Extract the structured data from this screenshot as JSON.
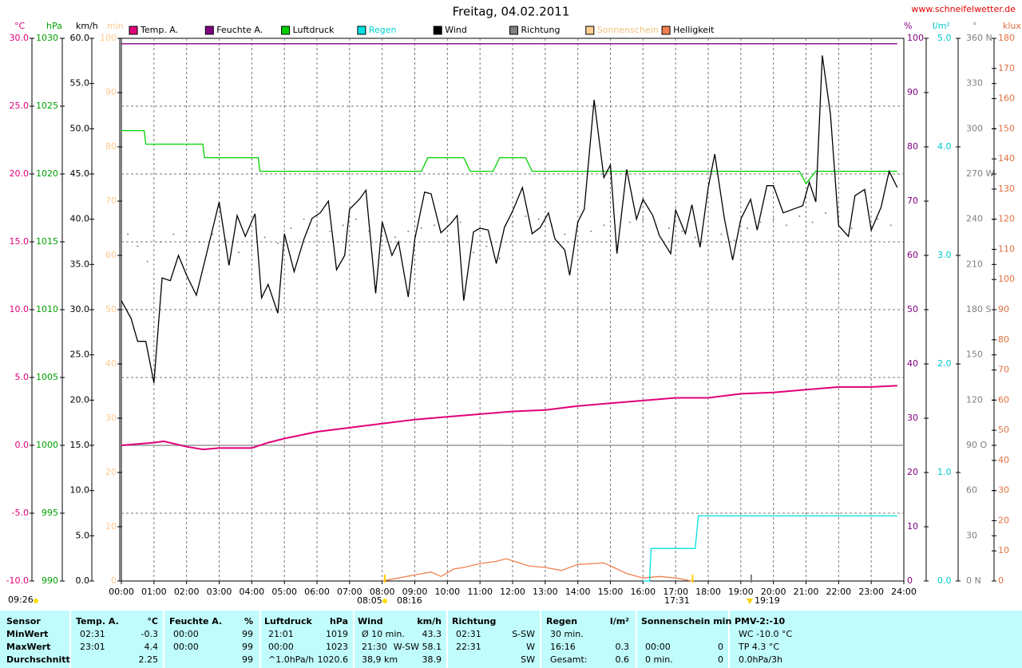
{
  "chart_data": {
    "type": "line",
    "title": "Freitag, 04.02.2011",
    "site": "www.schneifelwetter.de",
    "legend": [
      {
        "name": "Temp. A.",
        "color": "#e0007a"
      },
      {
        "name": "Feuchte A.",
        "color": "#800080"
      },
      {
        "name": "Luftdruck",
        "color": "#00d000"
      },
      {
        "name": "Regen",
        "color": "#00e0e0"
      },
      {
        "name": "Wind",
        "color": "#000000"
      },
      {
        "name": "Richtung",
        "color": "#808080"
      },
      {
        "name": "Sonnenschein",
        "color": "#ffd090"
      },
      {
        "name": "Helligkeit",
        "color": "#f08050"
      }
    ],
    "axes": {
      "temp": {
        "label": "°C",
        "color": "#e0007a",
        "lim": [
          -10,
          30
        ],
        "ticks": [
          {
            "value": -10,
            "label": "-10.0"
          },
          {
            "value": -5,
            "label": "-5.0"
          },
          {
            "value": 0,
            "label": "0.0"
          },
          {
            "value": 5,
            "label": "5.0"
          },
          {
            "value": 10,
            "label": "10.0"
          },
          {
            "value": 15,
            "label": "15.0"
          },
          {
            "value": 20,
            "label": "20.0"
          },
          {
            "value": 25,
            "label": "25.0"
          },
          {
            "value": 30,
            "label": "30.0"
          }
        ]
      },
      "press": {
        "label": "hPa",
        "color": "#00a000",
        "lim": [
          990,
          1030
        ],
        "ticks": [
          990,
          995,
          1000,
          1005,
          1010,
          1015,
          1020,
          1025,
          1030
        ]
      },
      "wind": {
        "label": "km/h",
        "color": "#000000",
        "lim": [
          0,
          60
        ],
        "ticks": [
          {
            "value": 0,
            "label": "0.0"
          },
          {
            "value": 5,
            "label": "5.0"
          },
          {
            "value": 10,
            "label": "10.0"
          },
          {
            "value": 15,
            "label": "15.0"
          },
          {
            "value": 20,
            "label": "20.0"
          },
          {
            "value": 25,
            "label": "25.0"
          },
          {
            "value": 30,
            "label": "30.0"
          },
          {
            "value": 35,
            "label": "35.0"
          },
          {
            "value": 40,
            "label": "40.0"
          },
          {
            "value": 45,
            "label": "45.0"
          },
          {
            "value": 50,
            "label": "50.0"
          },
          {
            "value": 55,
            "label": "55.0"
          },
          {
            "value": 60,
            "label": "60.0"
          }
        ]
      },
      "sun": {
        "label": "min",
        "color": "#ffc890",
        "lim": [
          0,
          100
        ],
        "ticks": [
          0,
          10,
          20,
          30,
          40,
          50,
          60,
          70,
          80,
          90,
          100
        ]
      },
      "hum": {
        "label": "%",
        "color": "#800080",
        "lim": [
          0,
          100
        ],
        "ticks": [
          0,
          10,
          20,
          30,
          40,
          50,
          60,
          70,
          80,
          90,
          100
        ]
      },
      "rain": {
        "label": "l/m²",
        "color": "#00c8c8",
        "lim": [
          0,
          5
        ],
        "ticks": [
          {
            "value": 0,
            "label": "0.0"
          },
          {
            "value": 1,
            "label": "1.0"
          },
          {
            "value": 2,
            "label": "2.0"
          },
          {
            "value": 3,
            "label": "3.0"
          },
          {
            "value": 4,
            "label": "4.0"
          },
          {
            "value": 5,
            "label": "5.0"
          }
        ]
      },
      "dir": {
        "label": "°",
        "color": "#808080",
        "lim": [
          0,
          360
        ],
        "ticks": [
          {
            "value": 0,
            "label": "0 N"
          },
          30,
          60,
          {
            "value": 90,
            "label": "90 O"
          },
          120,
          150,
          {
            "value": 180,
            "label": "180 S"
          },
          210,
          240,
          {
            "value": 270,
            "label": "270 W"
          },
          300,
          330,
          {
            "value": 360,
            "label": "360 N"
          }
        ]
      },
      "lux": {
        "label": "klux",
        "color": "#e07040",
        "lim": [
          0,
          180
        ],
        "ticks": [
          0,
          10,
          20,
          30,
          40,
          50,
          60,
          70,
          80,
          90,
          100,
          110,
          120,
          130,
          140,
          150,
          160,
          170,
          180
        ]
      }
    },
    "xlim": [
      0,
      24
    ],
    "xticks": [
      {
        "value": 0,
        "label": "00:00"
      },
      {
        "value": 1,
        "label": "01:00"
      },
      {
        "value": 2,
        "label": "02:00"
      },
      {
        "value": 3,
        "label": "03:00"
      },
      {
        "value": 4,
        "label": "04:00"
      },
      {
        "value": 5,
        "label": "05:00"
      },
      {
        "value": 6,
        "label": "06:00"
      },
      {
        "value": 7,
        "label": "07:00"
      },
      {
        "value": 8,
        "label": "08:00"
      },
      {
        "value": 9,
        "label": "09:00"
      },
      {
        "value": 10,
        "label": "10:00"
      },
      {
        "value": 11,
        "label": "11:00"
      },
      {
        "value": 12,
        "label": "12:00"
      },
      {
        "value": 13,
        "label": "13:00"
      },
      {
        "value": 14,
        "label": "14:00"
      },
      {
        "value": 15,
        "label": "15:00"
      },
      {
        "value": 16,
        "label": "16:00"
      },
      {
        "value": 17,
        "label": "17:00"
      },
      {
        "value": 18,
        "label": "18:00"
      },
      {
        "value": 19,
        "label": "19:00"
      },
      {
        "value": 20,
        "label": "20:00"
      },
      {
        "value": 21,
        "label": "21:00"
      },
      {
        "value": 22,
        "label": "22:00"
      },
      {
        "value": 23,
        "label": "23:00"
      },
      {
        "value": 24,
        "label": "24:00"
      }
    ],
    "grid": true,
    "series": [
      {
        "name": "Feuchte A.",
        "color": "#800080",
        "axis": "hum",
        "x": [
          0,
          23.8
        ],
        "values": [
          99,
          99
        ]
      },
      {
        "name": "Luftdruck",
        "color": "#00d000",
        "axis": "press",
        "x": [
          0,
          0.7,
          0.75,
          2.5,
          2.55,
          4.2,
          4.25,
          9.2,
          9.4,
          10.5,
          10.7,
          11.4,
          11.6,
          12.4,
          12.6,
          20.8,
          21,
          21.3,
          23.8
        ],
        "values": [
          1023.2,
          1023.2,
          1022.2,
          1022.2,
          1021.2,
          1021.2,
          1020.2,
          1020.2,
          1021.2,
          1021.2,
          1020.2,
          1020.2,
          1021.2,
          1021.2,
          1020.2,
          1020.2,
          1019.3,
          1020.2,
          1020.2
        ]
      },
      {
        "name": "Temp. A.",
        "color": "#e0007a",
        "axis": "temp",
        "x": [
          0,
          1,
          1.3,
          2,
          2.5,
          3,
          4,
          4.5,
          5,
          6,
          7,
          8,
          9,
          10,
          11,
          12,
          13,
          14,
          15,
          16,
          17,
          18,
          19,
          20,
          21,
          22,
          23,
          23.8
        ],
        "values": [
          0,
          0.2,
          0.3,
          -0.1,
          -0.3,
          -0.2,
          -0.2,
          0.2,
          0.5,
          1,
          1.3,
          1.6,
          1.9,
          2.1,
          2.3,
          2.5,
          2.6,
          2.9,
          3.1,
          3.3,
          3.5,
          3.5,
          3.8,
          3.9,
          4.1,
          4.3,
          4.3,
          4.4
        ]
      },
      {
        "name": "Helligkeit",
        "color": "#f08050",
        "axis": "lux",
        "x": [
          8,
          8.5,
          9,
          9.5,
          9.8,
          10.2,
          10.5,
          11,
          11.5,
          11.8,
          12.2,
          12.5,
          13,
          13.5,
          14,
          14.5,
          14.8,
          15.2,
          15.5,
          16,
          16.5,
          17,
          17.5
        ],
        "values": [
          0,
          1,
          2,
          3,
          1.5,
          4,
          4.5,
          5.8,
          6.5,
          7.4,
          6,
          5,
          4.5,
          3.5,
          5.5,
          5.8,
          6,
          4,
          2.5,
          1,
          1.5,
          1,
          0
        ]
      },
      {
        "name": "Regen",
        "color": "#00e0e0",
        "axis": "rain",
        "x": [
          16,
          16.2,
          16.25,
          17.6,
          17.7,
          23.8
        ],
        "values": [
          0,
          0,
          0.3,
          0.3,
          0.6,
          0.6
        ]
      },
      {
        "name": "Richtung",
        "color": "#808080",
        "axis": "dir",
        "style": "dots",
        "x": [
          0.2,
          0.5,
          0.8,
          1.2,
          1.6,
          2,
          2.4,
          2.8,
          3.2,
          3.6,
          4,
          4.4,
          4.8,
          5.2,
          5.6,
          6,
          6.4,
          6.8,
          7.2,
          7.6,
          8,
          8.4,
          8.8,
          9.2,
          9.6,
          10,
          10.4,
          10.8,
          11.2,
          11.6,
          12,
          12.4,
          12.8,
          13.2,
          13.6,
          14,
          14.4,
          14.8,
          15.2,
          15.6,
          16,
          16.4,
          16.8,
          17.2,
          17.6,
          18,
          18.4,
          18.8,
          19.2,
          19.6,
          20,
          20.4,
          20.8,
          21.2,
          21.6,
          22,
          22.4,
          22.8,
          23.2,
          23.6
        ],
        "values": [
          230,
          222,
          212,
          225,
          230,
          232,
          225,
          230,
          226,
          218,
          222,
          228,
          224,
          234,
          240,
          236,
          232,
          236,
          240,
          232,
          234,
          228,
          232,
          234,
          236,
          240,
          238,
          218,
          222,
          214,
          238,
          242,
          240,
          236,
          230,
          238,
          232,
          236,
          222,
          238,
          240,
          236,
          234,
          232,
          228,
          232,
          230,
          226,
          234,
          238,
          240,
          236,
          242,
          238,
          244,
          242,
          234,
          258,
          240,
          236
        ]
      },
      {
        "name": "Wind",
        "color": "#000000",
        "axis": "wind",
        "x": [
          0,
          0.3,
          0.5,
          0.75,
          1,
          1.25,
          1.5,
          1.75,
          2,
          2.3,
          2.6,
          3,
          3.3,
          3.55,
          3.8,
          4.1,
          4.3,
          4.5,
          4.8,
          5,
          5.3,
          5.6,
          5.85,
          6.1,
          6.35,
          6.6,
          6.85,
          7,
          7.3,
          7.5,
          7.8,
          8,
          8.3,
          8.5,
          8.8,
          9,
          9.3,
          9.5,
          9.8,
          10.1,
          10.3,
          10.5,
          10.8,
          11,
          11.25,
          11.5,
          11.75,
          12,
          12.3,
          12.6,
          12.85,
          13.1,
          13.3,
          13.6,
          13.75,
          14,
          14.2,
          14.5,
          14.8,
          15,
          15.2,
          15.5,
          15.8,
          16,
          16.3,
          16.5,
          16.85,
          17,
          17.3,
          17.5,
          17.75,
          18,
          18.2,
          18.5,
          18.75,
          19,
          19.3,
          19.5,
          19.8,
          20,
          20.3,
          20.6,
          20.9,
          21.1,
          21.3,
          21.5,
          21.75,
          22,
          22.3,
          22.5,
          22.8,
          23,
          23.3,
          23.55,
          23.8
        ],
        "values": [
          31,
          29,
          26.5,
          26.5,
          21.9,
          33.5,
          33.2,
          36,
          33.8,
          31.6,
          36,
          41.9,
          34.9,
          40.4,
          38.1,
          40.6,
          31.3,
          32.8,
          29.6,
          38.4,
          34.2,
          37.8,
          40.1,
          40.7,
          42,
          34.4,
          36,
          41.1,
          42.2,
          43.2,
          31.8,
          39.7,
          36,
          37.5,
          31.4,
          37.8,
          43,
          42.8,
          38.5,
          39.5,
          40.4,
          31,
          38.6,
          39,
          38.8,
          35.1,
          39.1,
          40.9,
          43.5,
          38.4,
          39.1,
          40.7,
          37.8,
          36.6,
          33.8,
          39.7,
          41.1,
          53.2,
          44.6,
          46,
          36.2,
          45.5,
          40,
          42.2,
          40.4,
          38.2,
          36.2,
          41,
          38.4,
          41.6,
          36.9,
          43.5,
          47.2,
          40,
          35.5,
          40,
          42.2,
          38.8,
          43.7,
          43.7,
          40.7,
          41.1,
          41.5,
          44.1,
          41.9,
          58.1,
          51.6,
          39.3,
          38.1,
          42.6,
          43.3,
          38.8,
          41.3,
          45.3,
          43.5
        ]
      }
    ],
    "annotations": [
      "09:26",
      "08:05",
      "08:16",
      "17:31",
      "19:19"
    ],
    "table": {
      "columns": [
        {
          "title": "Sensor"
        },
        {
          "title": "Temp. A.",
          "unit": "°C"
        },
        {
          "title": "Feuchte A.",
          "unit": "%"
        },
        {
          "title": "Luftdruck",
          "unit": "hPa"
        },
        {
          "title": "Wind",
          "unit": "km/h"
        },
        {
          "title": "Richtung"
        },
        {
          "title": "Regen",
          "unit": "l/m²"
        },
        {
          "title": "Sonnenschein min"
        },
        {
          "title": "PMV-2:-10"
        }
      ],
      "rows": [
        {
          "label": "MinWert",
          "cells": [
            [
              "02:31",
              "-0.3"
            ],
            [
              "00:00",
              "99"
            ],
            [
              "21:01",
              "1019"
            ],
            [
              "Ø 10 min.",
              "43.3"
            ],
            [
              "02:31",
              "S-SW"
            ],
            [
              "30 min.",
              null
            ],
            [
              null,
              null
            ],
            [
              "WC -10.0 °C",
              null
            ]
          ]
        },
        {
          "label": "MaxWert",
          "cells": [
            [
              "23:01",
              "4.4"
            ],
            [
              "00:00",
              "99"
            ],
            [
              "00:00",
              "1023"
            ],
            [
              "21:30",
              "W-SW 58.1"
            ],
            [
              "22:31",
              "W"
            ],
            [
              "16:16",
              "0.3"
            ],
            [
              "00:00",
              "0"
            ],
            [
              "TP 4.3 °C",
              null
            ]
          ]
        },
        {
          "label": "Durchschnitt",
          "cells": [
            [
              null,
              "2.25"
            ],
            [
              null,
              "99"
            ],
            [
              "^1.0hPa/h",
              "1020.6"
            ],
            [
              "38,9 km",
              "38.9"
            ],
            [
              null,
              "SW"
            ],
            [
              "Gesamt:",
              "0.6"
            ],
            [
              "0 min.",
              "0"
            ],
            [
              "0.0hPa/3h",
              null
            ]
          ]
        }
      ]
    }
  }
}
